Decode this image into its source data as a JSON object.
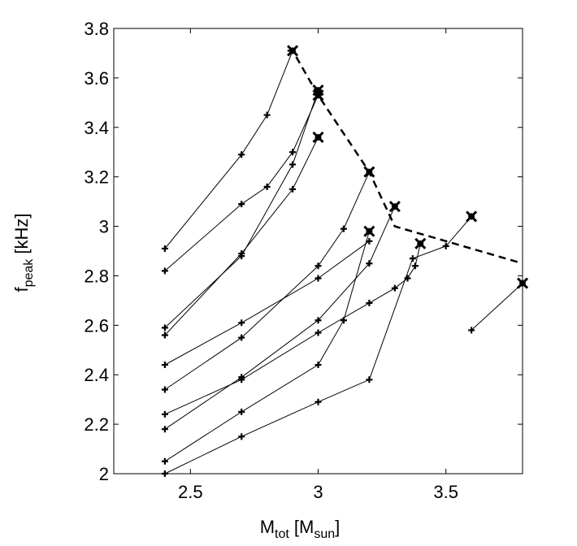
{
  "chart_data": {
    "type": "line",
    "xlabel": {
      "base": "M",
      "sub": "tot",
      "mid": " [M",
      "sub2": "sun",
      "end": "]"
    },
    "ylabel": {
      "base": "f",
      "sub": "peak",
      "end": " [kHz]"
    },
    "xlim": [
      2.2,
      3.8
    ],
    "ylim": [
      2.0,
      3.8
    ],
    "xticks": [
      2.5,
      3.0,
      3.5
    ],
    "xtick_labels": [
      "2.5",
      "3",
      "3.5"
    ],
    "yticks": [
      2.0,
      2.2,
      2.4,
      2.6,
      2.8,
      3.0,
      3.2,
      3.4,
      3.6,
      3.8
    ],
    "ytick_labels": [
      "2",
      "2.2",
      "2.4",
      "2.6",
      "2.8",
      "3",
      "3.2",
      "3.4",
      "3.6",
      "3.8"
    ],
    "grid": false,
    "series": [
      {
        "x": [
          2.4,
          2.7,
          2.8,
          2.9
        ],
        "y": [
          2.91,
          3.29,
          3.45,
          3.71
        ]
      },
      {
        "x": [
          2.4,
          2.7,
          2.8,
          2.9,
          3.0
        ],
        "y": [
          2.82,
          3.09,
          3.16,
          3.3,
          3.53
        ]
      },
      {
        "x": [
          2.4,
          2.7,
          2.9,
          3.0
        ],
        "y": [
          2.59,
          2.88,
          3.25,
          3.55
        ]
      },
      {
        "x": [
          2.4,
          2.7,
          2.9,
          3.0
        ],
        "y": [
          2.56,
          2.89,
          3.15,
          3.36
        ]
      },
      {
        "x": [
          2.4,
          2.7,
          3.0,
          3.1,
          3.2
        ],
        "y": [
          2.34,
          2.55,
          2.84,
          2.99,
          3.22
        ]
      },
      {
        "x": [
          2.4,
          2.7,
          3.0,
          3.2
        ],
        "y": [
          2.44,
          2.61,
          2.79,
          2.94
        ]
      },
      {
        "x": [
          2.4,
          2.7,
          3.0,
          3.2,
          3.3
        ],
        "y": [
          2.18,
          2.39,
          2.62,
          2.85,
          3.08
        ]
      },
      {
        "x": [
          2.4,
          2.7,
          3.0,
          3.1,
          3.2
        ],
        "y": [
          2.05,
          2.25,
          2.44,
          2.62,
          2.98
        ]
      },
      {
        "x": [
          2.4,
          2.7,
          3.0,
          3.2,
          3.3,
          3.35,
          3.38,
          3.4
        ],
        "y": [
          2.24,
          2.38,
          2.57,
          2.69,
          2.75,
          2.79,
          2.84,
          2.93
        ]
      },
      {
        "x": [
          2.4,
          2.7,
          3.0,
          3.2,
          3.37,
          3.5,
          3.6
        ],
        "y": [
          2.0,
          2.15,
          2.29,
          2.38,
          2.87,
          2.92,
          3.04
        ]
      },
      {
        "x": [
          3.6,
          3.8
        ],
        "y": [
          2.58,
          2.77
        ]
      }
    ],
    "endpoints": {
      "x": [
        2.9,
        3.0,
        3.0,
        3.0,
        3.2,
        3.2,
        3.3,
        3.4,
        3.6,
        3.8
      ],
      "y": [
        3.71,
        3.55,
        3.53,
        3.36,
        3.22,
        2.98,
        3.08,
        2.93,
        3.04,
        2.77
      ]
    },
    "envelope": {
      "style": "dashed",
      "x": [
        2.88,
        2.9,
        3.0,
        3.2,
        3.3,
        3.5,
        3.8
      ],
      "y": [
        3.71,
        3.71,
        3.53,
        3.22,
        3.0,
        2.94,
        2.85
      ]
    }
  }
}
